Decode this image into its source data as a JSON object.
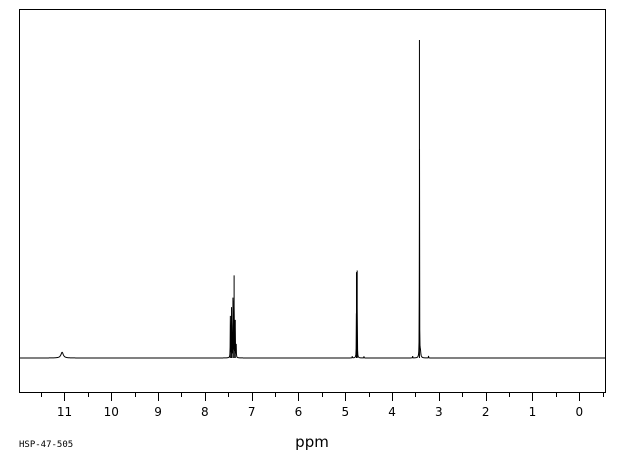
{
  "chart_data": {
    "type": "line",
    "title": "",
    "xlabel": "ppm",
    "ylabel": "",
    "xlim": [
      11.95,
      -0.55
    ],
    "ylim": [
      0,
      1
    ],
    "x_reversed": true,
    "grid": false,
    "legend": "none",
    "ticks": {
      "major": [
        11,
        10,
        9,
        8,
        7,
        6,
        5,
        4,
        3,
        2,
        1,
        0
      ],
      "labels": [
        "11",
        "10",
        "9",
        "8",
        "7",
        "6",
        "5",
        "4",
        "3",
        "2",
        "1",
        "0"
      ],
      "minor_step": 0.5
    },
    "peaks": [
      {
        "ppm": 11.05,
        "height": 0.018,
        "width": 0.06
      },
      {
        "ppm": 7.455,
        "height": 0.13,
        "width": 0.006
      },
      {
        "ppm": 7.43,
        "height": 0.16,
        "width": 0.006
      },
      {
        "ppm": 7.4,
        "height": 0.19,
        "width": 0.006
      },
      {
        "ppm": 7.375,
        "height": 0.26,
        "width": 0.006
      },
      {
        "ppm": 7.35,
        "height": 0.12,
        "width": 0.006
      },
      {
        "ppm": 7.33,
        "height": 0.04,
        "width": 0.006
      },
      {
        "ppm": 4.745,
        "height": 0.275,
        "width": 0.005
      },
      {
        "ppm": 4.76,
        "height": 0.27,
        "width": 0.005
      },
      {
        "ppm": 4.85,
        "height": 0.006,
        "width": 0.005
      },
      {
        "ppm": 4.6,
        "height": 0.006,
        "width": 0.005
      },
      {
        "ppm": 3.56,
        "height": 0.006,
        "width": 0.005
      },
      {
        "ppm": 3.415,
        "height": 1.0,
        "width": 0.004
      },
      {
        "ppm": 3.395,
        "height": 0.02,
        "width": 0.02
      },
      {
        "ppm": 3.22,
        "height": 0.007,
        "width": 0.005
      }
    ],
    "code": "HSP-47-505"
  }
}
